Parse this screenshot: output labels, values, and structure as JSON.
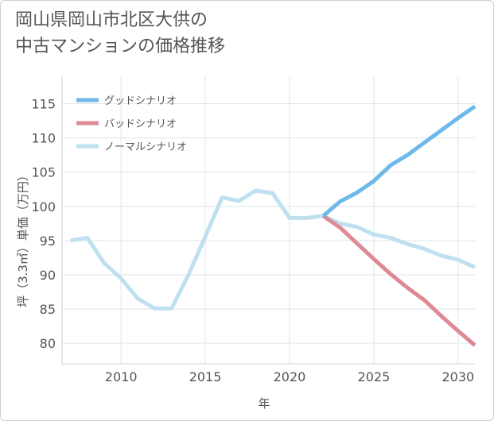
{
  "title_lines": [
    "岡山県岡山市北区大供の",
    "中古マンションの価格推移"
  ],
  "chart_data": {
    "type": "line",
    "title": "岡山県岡山市北区大供の中古マンションの価格推移",
    "xlabel": "年",
    "ylabel": "坪（3.3㎡）単価（万円）",
    "xlim": [
      2006.5,
      2031
    ],
    "ylim": [
      77,
      119
    ],
    "x_ticks": [
      2010,
      2015,
      2020,
      2025,
      2030
    ],
    "y_ticks": [
      80,
      85,
      90,
      95,
      100,
      105,
      110,
      115
    ],
    "legend_position": "top-left",
    "series": [
      {
        "name": "グッドシナリオ",
        "color": "#6fb9ea",
        "x": [
          2022,
          2023,
          2024,
          2025,
          2026,
          2027,
          2028,
          2029,
          2030,
          2031
        ],
        "values": [
          98.6,
          100.7,
          102.0,
          103.7,
          106.0,
          107.5,
          109.3,
          111.1,
          112.9,
          114.6
        ]
      },
      {
        "name": "バッドシナリオ",
        "color": "#de8a95",
        "x": [
          2022,
          2023,
          2024,
          2025,
          2026,
          2027,
          2028,
          2029,
          2030,
          2031
        ],
        "values": [
          98.6,
          96.9,
          94.6,
          92.3,
          90.1,
          88.1,
          86.3,
          84.0,
          81.8,
          79.7
        ]
      },
      {
        "name": "ノーマルシナリオ",
        "color": "#bfe0ef",
        "x": [
          2007,
          2008,
          2009,
          2010,
          2011,
          2012,
          2013,
          2014,
          2015,
          2016,
          2017,
          2018,
          2019,
          2020,
          2021,
          2022,
          2023,
          2024,
          2025,
          2026,
          2027,
          2028,
          2029,
          2030,
          2031
        ],
        "values": [
          95.0,
          95.4,
          91.7,
          89.5,
          86.5,
          85.1,
          85.1,
          90.0,
          95.6,
          101.3,
          100.8,
          102.3,
          101.9,
          98.3,
          98.3,
          98.6,
          97.5,
          97.0,
          95.9,
          95.4,
          94.5,
          93.8,
          92.8,
          92.2,
          91.1
        ]
      }
    ]
  }
}
